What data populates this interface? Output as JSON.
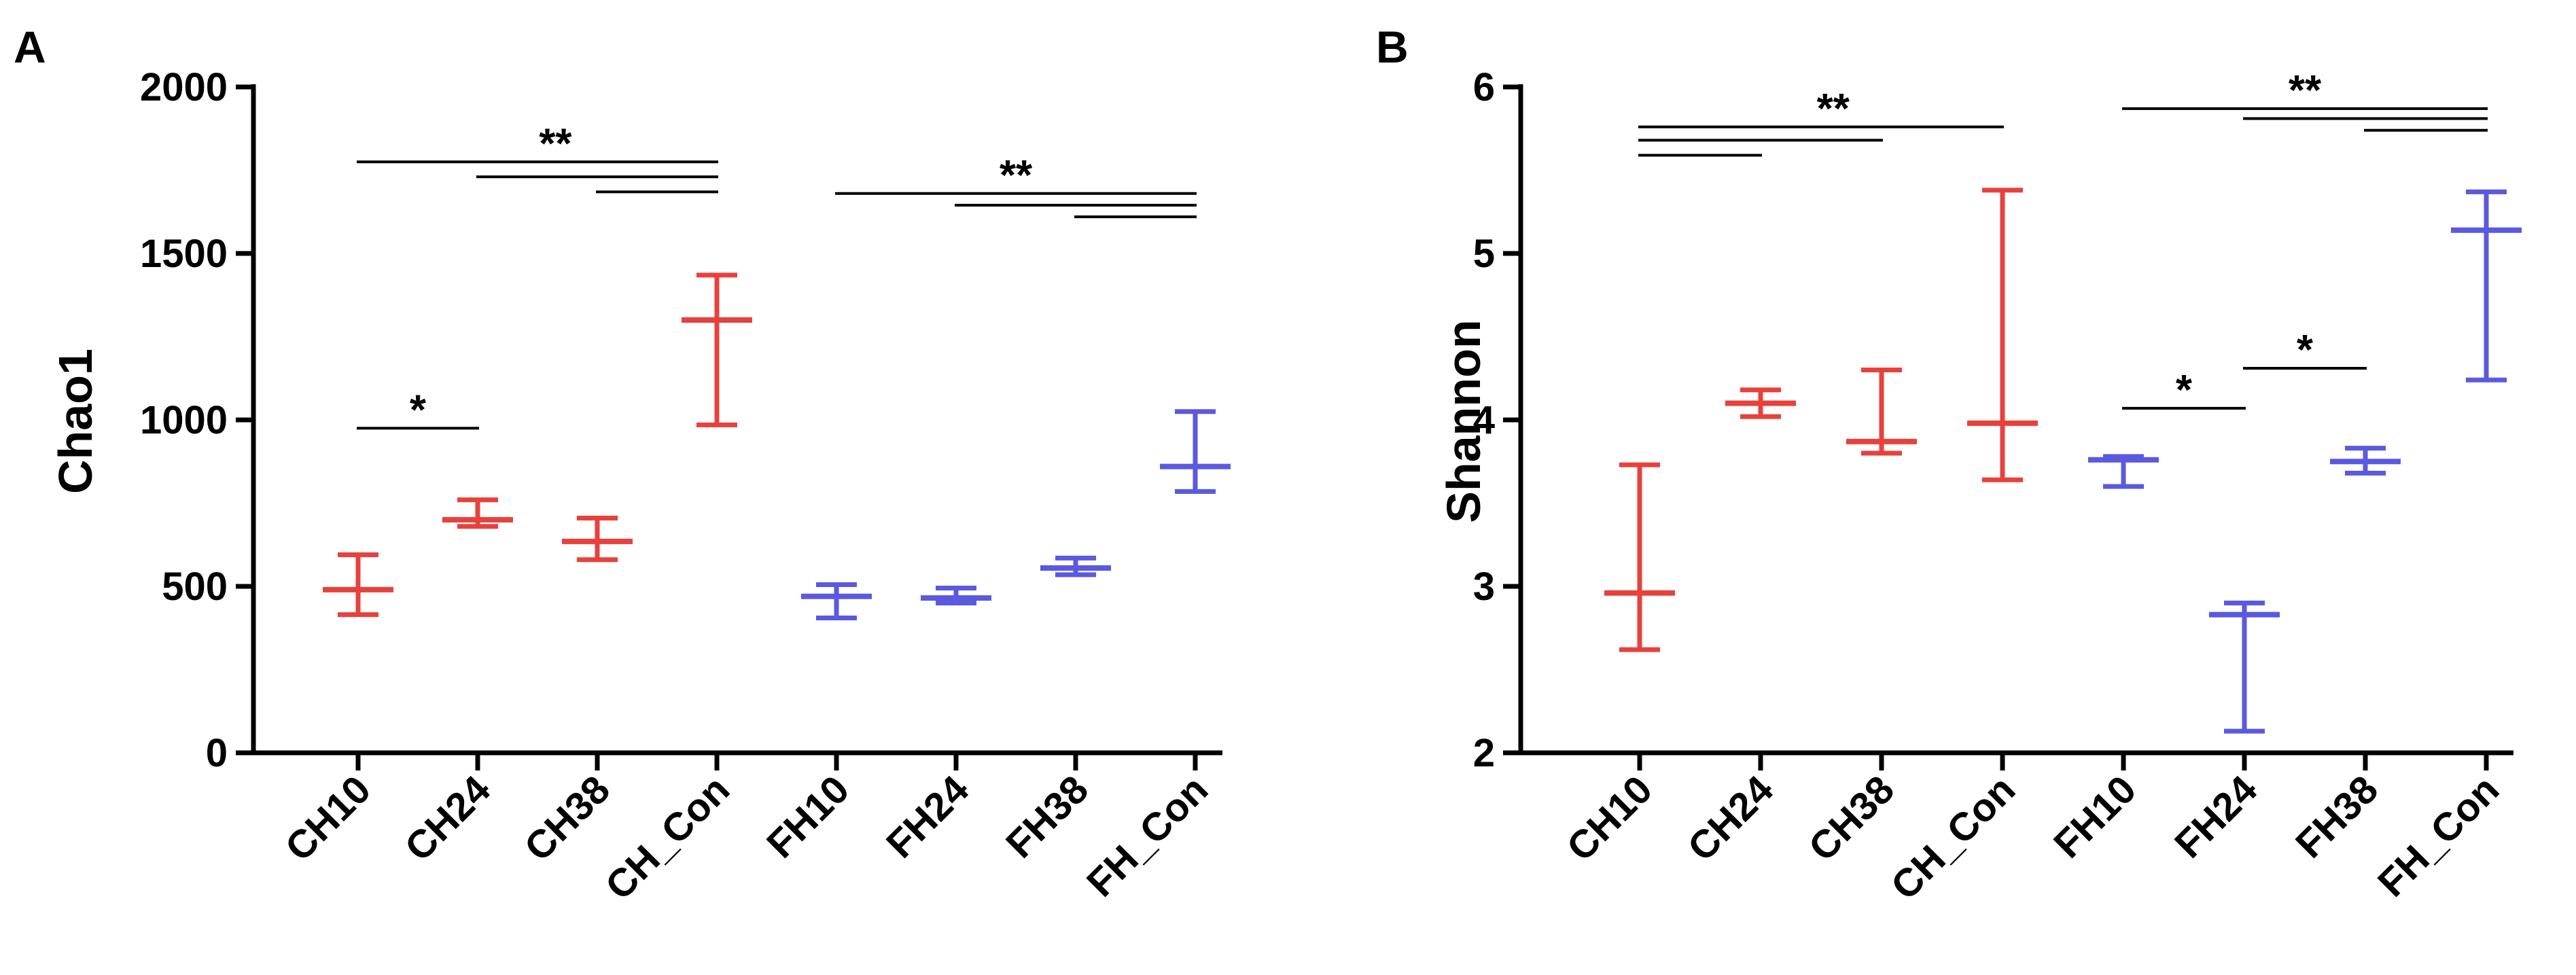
{
  "colors": {
    "ch": "#e8413c",
    "fh": "#5a59e0",
    "axis": "#000000"
  },
  "chart_data": [
    {
      "panel": "A",
      "type": "box_minmax",
      "ylabel": "Chao1",
      "ylim": [
        0,
        2000
      ],
      "yticks": [
        0,
        500,
        1000,
        1500,
        2000
      ],
      "categories": [
        "CH10",
        "CH24",
        "CH38",
        "CH_Con",
        "FH10",
        "FH24",
        "FH38",
        "FH_Con"
      ],
      "groups": [
        "ch",
        "ch",
        "ch",
        "ch",
        "fh",
        "fh",
        "fh",
        "fh"
      ],
      "min": [
        415,
        680,
        580,
        985,
        405,
        450,
        535,
        785
      ],
      "mid": [
        490,
        700,
        635,
        1300,
        470,
        465,
        555,
        860
      ],
      "max": [
        595,
        760,
        705,
        1435,
        505,
        495,
        585,
        1025
      ],
      "significance": [
        {
          "label": "*",
          "y": 975,
          "from": 0,
          "to": 1,
          "label_at": 0.5,
          "show_label": true
        },
        {
          "label": "**",
          "y": 1775,
          "from": 0,
          "to": 3,
          "label_at": 1.65,
          "show_label": true
        },
        {
          "label": "**",
          "y": 1730,
          "from": 1,
          "to": 3,
          "label_at": 2,
          "show_label": false
        },
        {
          "label": "**",
          "y": 1685,
          "from": 2,
          "to": 3,
          "label_at": 2.5,
          "show_label": false
        },
        {
          "label": "**",
          "y": 1680,
          "from": 4,
          "to": 7,
          "label_at": 5.5,
          "show_label": true
        },
        {
          "label": "**",
          "y": 1645,
          "from": 5,
          "to": 7,
          "label_at": 6,
          "show_label": false
        },
        {
          "label": "**",
          "y": 1610,
          "from": 6,
          "to": 7,
          "label_at": 6.5,
          "show_label": false
        }
      ]
    },
    {
      "panel": "B",
      "type": "box_minmax",
      "ylabel": "Shannon",
      "ylim": [
        2,
        6
      ],
      "yticks": [
        2,
        3,
        4,
        5,
        6
      ],
      "categories": [
        "CH10",
        "CH24",
        "CH38",
        "CH_Con",
        "FH10",
        "FH24",
        "FH38",
        "FH_Con"
      ],
      "groups": [
        "ch",
        "ch",
        "ch",
        "ch",
        "fh",
        "fh",
        "fh",
        "fh"
      ],
      "min": [
        2.62,
        4.02,
        3.8,
        3.64,
        3.6,
        2.13,
        3.68,
        4.24
      ],
      "mid": [
        2.96,
        4.1,
        3.87,
        3.98,
        3.76,
        2.83,
        3.75,
        5.14
      ],
      "max": [
        3.73,
        4.18,
        4.3,
        5.38,
        3.78,
        2.9,
        3.83,
        5.37
      ],
      "significance": [
        {
          "label": "**",
          "y": 5.76,
          "from": 0,
          "to": 3,
          "label_at": 1.6,
          "show_label": true
        },
        {
          "label": "**",
          "y": 5.68,
          "from": 0,
          "to": 2,
          "label_at": 1,
          "show_label": false
        },
        {
          "label": "**",
          "y": 5.59,
          "from": 0,
          "to": 1,
          "label_at": 0.5,
          "show_label": false
        },
        {
          "label": "*",
          "y": 4.07,
          "from": 4,
          "to": 5,
          "label_at": 4.5,
          "show_label": true
        },
        {
          "label": "*",
          "y": 4.31,
          "from": 5,
          "to": 6,
          "label_at": 5.5,
          "show_label": true
        },
        {
          "label": "**",
          "y": 5.87,
          "from": 4,
          "to": 7,
          "label_at": 5.5,
          "show_label": true
        },
        {
          "label": "**",
          "y": 5.81,
          "from": 5,
          "to": 7,
          "label_at": 6,
          "show_label": false
        },
        {
          "label": "**",
          "y": 5.74,
          "from": 6,
          "to": 7,
          "label_at": 6.5,
          "show_label": false
        }
      ]
    }
  ]
}
